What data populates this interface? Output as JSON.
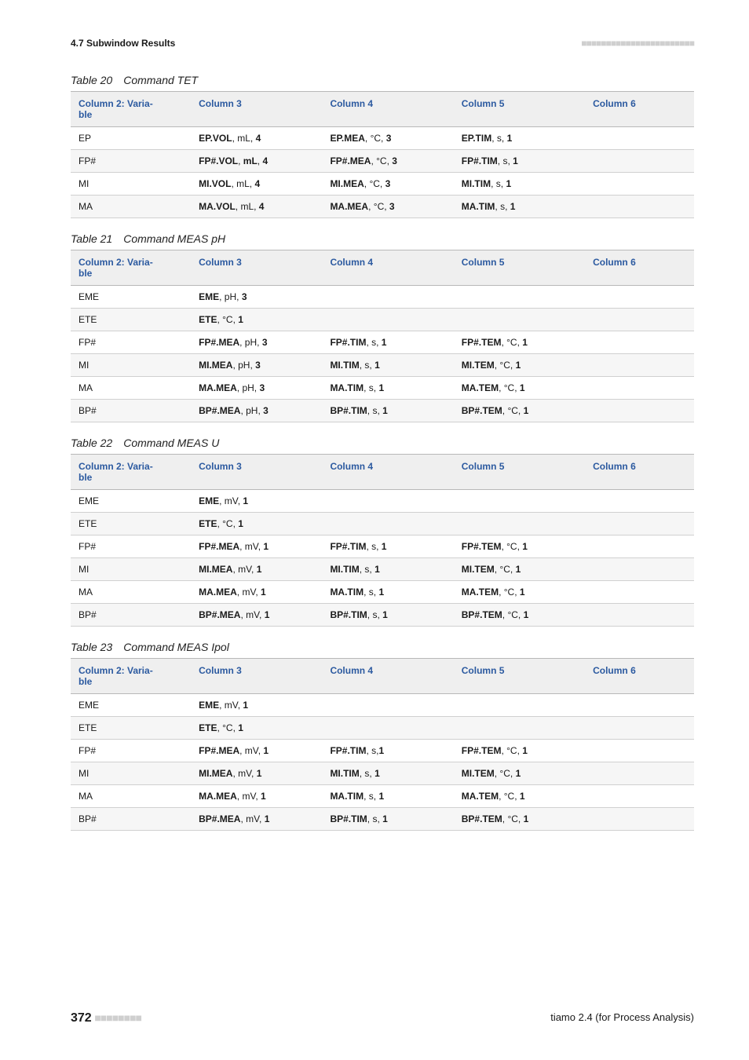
{
  "colors": {
    "header_text": "#2c5aa0",
    "header_bg": "#efefef",
    "row_alt_bg": "#f6f6f6",
    "border": "#b8b8b8",
    "row_border": "#d0d0d0",
    "page_bg": "#ffffff",
    "dots": "#cfcfcf"
  },
  "typography": {
    "body_pt": 12,
    "caption_pt": 14,
    "footer_pt": 13,
    "page_num_pt": 16
  },
  "header": {
    "section": "4.7 Subwindow Results",
    "dots": "■■■■■■■■■■■■■■■■■■■■■■■"
  },
  "columns": [
    "Column 2: Varia-\nble",
    "Column 3",
    "Column 4",
    "Column 5",
    "Column 6"
  ],
  "tables": [
    {
      "num": "Table 20",
      "title": "Command TET",
      "rows": [
        {
          "v": "EP",
          "c3": [
            "EP.VOL",
            ", mL, ",
            "4"
          ],
          "c4": [
            "EP.MEA",
            ", °C, ",
            "3"
          ],
          "c5": [
            "EP.TIM",
            ", s, ",
            "1"
          ],
          "c6": []
        },
        {
          "v": "FP#",
          "c3": [
            "FP#.VOL",
            ", ",
            "mL",
            ", ",
            "4"
          ],
          "c4": [
            "FP#.MEA",
            ", °C, ",
            "3"
          ],
          "c5": [
            "FP#.TIM",
            ", s, ",
            "1"
          ],
          "c6": []
        },
        {
          "v": "MI",
          "c3": [
            "MI.VOL",
            ", mL, ",
            "4"
          ],
          "c4": [
            "MI.MEA",
            ", °C, ",
            "3"
          ],
          "c5": [
            "MI.TIM",
            ", s, ",
            "1"
          ],
          "c6": []
        },
        {
          "v": "MA",
          "c3": [
            "MA.VOL",
            ", mL, ",
            "4"
          ],
          "c4": [
            "MA.MEA",
            ", °C, ",
            "3"
          ],
          "c5": [
            "MA.TIM",
            ", s, ",
            "1"
          ],
          "c6": []
        }
      ]
    },
    {
      "num": "Table 21",
      "title": "Command MEAS pH",
      "rows": [
        {
          "v": "EME",
          "c3": [
            "EME",
            ", pH, ",
            "3"
          ],
          "c4": [],
          "c5": [],
          "c6": []
        },
        {
          "v": "ETE",
          "c3": [
            "ETE",
            ", °C, ",
            "1"
          ],
          "c4": [],
          "c5": [],
          "c6": []
        },
        {
          "v": "FP#",
          "c3": [
            "FP#.MEA",
            ", pH, ",
            "3"
          ],
          "c4": [
            "FP#.TIM",
            ", s, ",
            "1"
          ],
          "c5": [
            "FP#.TEM",
            ", °C, ",
            "1"
          ],
          "c6": []
        },
        {
          "v": "MI",
          "c3": [
            "MI.MEA",
            ", pH, ",
            "3"
          ],
          "c4": [
            "MI.TIM",
            ", s, ",
            "1"
          ],
          "c5": [
            "MI.TEM",
            ", °C, ",
            "1"
          ],
          "c6": []
        },
        {
          "v": "MA",
          "c3": [
            "MA.MEA",
            ", pH, ",
            "3"
          ],
          "c4": [
            "MA.TIM",
            ", s, ",
            "1"
          ],
          "c5": [
            "MA.TEM",
            ", °C, ",
            "1"
          ],
          "c6": []
        },
        {
          "v": "BP#",
          "c3": [
            "BP#.MEA",
            ", pH, ",
            "3"
          ],
          "c4": [
            "BP#.TIM",
            ", s, ",
            "1"
          ],
          "c5": [
            "BP#.TEM",
            ", °C, ",
            "1"
          ],
          "c6": []
        }
      ]
    },
    {
      "num": "Table 22",
      "title": "Command MEAS U",
      "rows": [
        {
          "v": "EME",
          "c3": [
            "EME",
            ", mV, ",
            "1"
          ],
          "c4": [],
          "c5": [],
          "c6": []
        },
        {
          "v": "ETE",
          "c3": [
            "ETE",
            ", °C, ",
            "1"
          ],
          "c4": [],
          "c5": [],
          "c6": []
        },
        {
          "v": "FP#",
          "c3": [
            "FP#.MEA",
            ", mV, ",
            "1"
          ],
          "c4": [
            "FP#.TIM",
            ", s, ",
            "1"
          ],
          "c5": [
            "FP#.TEM",
            ", °C, ",
            "1"
          ],
          "c6": []
        },
        {
          "v": "MI",
          "c3": [
            "MI.MEA",
            ", mV, ",
            "1"
          ],
          "c4": [
            "MI.TIM",
            ", s, ",
            "1"
          ],
          "c5": [
            "MI.TEM",
            ", °C, ",
            "1"
          ],
          "c6": []
        },
        {
          "v": "MA",
          "c3": [
            "MA.MEA",
            ", mV, ",
            "1"
          ],
          "c4": [
            "MA.TIM",
            ", s, ",
            "1"
          ],
          "c5": [
            "MA.TEM",
            ", °C, ",
            "1"
          ],
          "c6": []
        },
        {
          "v": "BP#",
          "c3": [
            "BP#.MEA",
            ", mV, ",
            "1"
          ],
          "c4": [
            "BP#.TIM",
            ", s, ",
            "1"
          ],
          "c5": [
            "BP#.TEM",
            ", °C, ",
            "1"
          ],
          "c6": []
        }
      ]
    },
    {
      "num": "Table 23",
      "title": "Command MEAS Ipol",
      "rows": [
        {
          "v": "EME",
          "c3": [
            "EME",
            ", mV, ",
            "1"
          ],
          "c4": [],
          "c5": [],
          "c6": []
        },
        {
          "v": "ETE",
          "c3": [
            "ETE",
            ", °C, ",
            "1"
          ],
          "c4": [],
          "c5": [],
          "c6": []
        },
        {
          "v": "FP#",
          "c3": [
            "FP#.MEA",
            ", mV, ",
            "1"
          ],
          "c4": [
            "FP#.TIM",
            ", s,",
            "1"
          ],
          "c5": [
            "FP#.TEM",
            ", °C, ",
            "1"
          ],
          "c6": []
        },
        {
          "v": "MI",
          "c3": [
            "MI.MEA",
            ", mV, ",
            "1"
          ],
          "c4": [
            "MI.TIM",
            ", s, ",
            "1"
          ],
          "c5": [
            "MI.TEM",
            ", °C, ",
            "1"
          ],
          "c6": []
        },
        {
          "v": "MA",
          "c3": [
            "MA.MEA",
            ", mV, ",
            "1"
          ],
          "c4": [
            "MA.TIM",
            ", s, ",
            "1"
          ],
          "c5": [
            "MA.TEM",
            ", °C, ",
            "1"
          ],
          "c6": []
        },
        {
          "v": "BP#",
          "c3": [
            "BP#.MEA",
            ", mV, ",
            "1"
          ],
          "c4": [
            "BP#.TIM",
            ", s, ",
            "1"
          ],
          "c5": [
            "BP#.TEM",
            ", °C, ",
            "1"
          ],
          "c6": []
        }
      ]
    }
  ],
  "footer": {
    "page_num": "372",
    "dots": "■■■■■■■■",
    "product": "tiamo 2.4 (for Process Analysis)"
  }
}
